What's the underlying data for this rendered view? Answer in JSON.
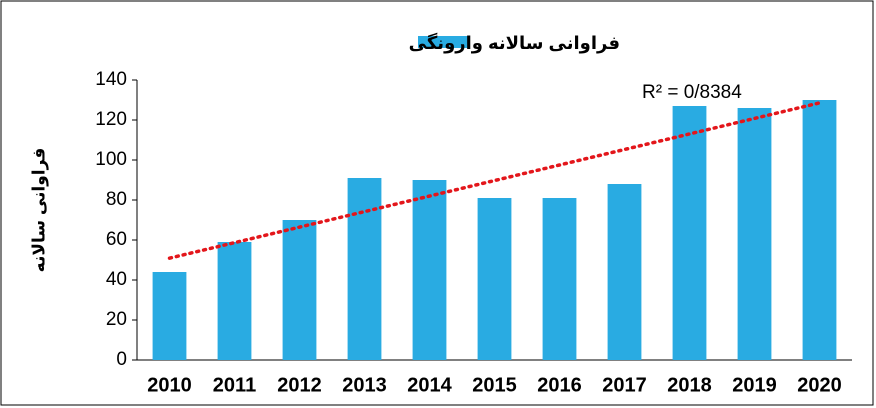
{
  "chart_data": {
    "type": "bar",
    "series": [
      {
        "name": "فراوانی سالانه وارونگی",
        "color": "#29abe2",
        "values": [
          44,
          59,
          70,
          91,
          90,
          81,
          81,
          88,
          127,
          126,
          130
        ]
      }
    ],
    "categories": [
      "2010",
      "2011",
      "2012",
      "2013",
      "2014",
      "2015",
      "2016",
      "2017",
      "2018",
      "2019",
      "2020"
    ],
    "y_label": "فراوانی سالانه",
    "ylim": [
      0,
      140
    ],
    "yticks": [
      0,
      20,
      40,
      60,
      80,
      100,
      120,
      140
    ],
    "grid": false,
    "legend": "top",
    "trendline": {
      "type": "linear",
      "color": "#e3161b",
      "label": "R² = 0/8384"
    }
  }
}
